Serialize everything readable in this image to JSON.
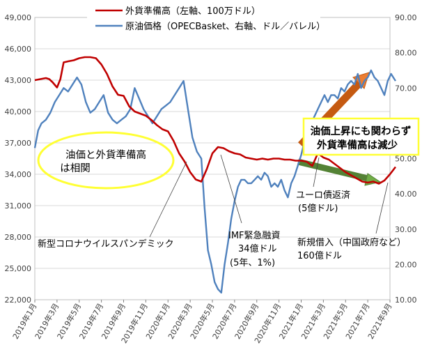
{
  "chart_data": {
    "type": "line",
    "legend_placement": "top-center",
    "grid": true,
    "x_ticks": [
      "2019年1月",
      "2019年3月",
      "2019年5月",
      "2019年7月",
      "2019年9月",
      "2019年11月",
      "2020年1月",
      "2020年3月",
      "2020年5月",
      "2020年7月",
      "2020年9月",
      "2020年11月",
      "2021年1月",
      "2021年3月",
      "2021年5月",
      "2021年7月",
      "2021年9月"
    ],
    "y_left": {
      "min": 22000,
      "max": 49000,
      "ticks": [
        "22,000",
        "25,000",
        "28,000",
        "31,000",
        "34,000",
        "37,000",
        "40,000",
        "43,000",
        "46,000",
        "49,000"
      ]
    },
    "y_right": {
      "min": 10,
      "max": 90,
      "ticks": [
        "10.00",
        "20.00",
        "30.00",
        "40.00",
        "50.00",
        "60.00",
        "70.00",
        "80.00",
        "90.00"
      ]
    },
    "series": [
      {
        "name": "外貨準備高（左軸、100万ドル）",
        "axis": "left",
        "color": "#c00000",
        "x": [
          0,
          1,
          1.3,
          1.6,
          2,
          2.3,
          2.6,
          3,
          3.5,
          4,
          4.5,
          5,
          5.5,
          6,
          6.5,
          7,
          7.5,
          8,
          8.5,
          9,
          9.5,
          10,
          10.5,
          11,
          11.5,
          12,
          12.5,
          13,
          13.5,
          14,
          14.5,
          15,
          15.5,
          16,
          16.5,
          17,
          17.5,
          18,
          18.5,
          19,
          19.5,
          20,
          20.5,
          21,
          21.5,
          22,
          22.5,
          23,
          23.5,
          24,
          24.5,
          25,
          25.5,
          26,
          26.5,
          27,
          27.5,
          28,
          28.5,
          29,
          29.5,
          30,
          30.5,
          31,
          31.5,
          32,
          32.5
        ],
        "values": [
          43000,
          43200,
          43100,
          42800,
          42300,
          43100,
          44700,
          44800,
          44900,
          45100,
          45200,
          45200,
          45100,
          44500,
          43600,
          42400,
          41600,
          41500,
          40500,
          40000,
          39800,
          39600,
          39200,
          38700,
          38300,
          38100,
          37200,
          36000,
          35200,
          34200,
          33500,
          33300,
          34500,
          36000,
          36600,
          36500,
          36200,
          36000,
          35900,
          35600,
          35500,
          35400,
          35500,
          35400,
          35500,
          35500,
          35400,
          35400,
          35300,
          35300,
          35200,
          34800,
          36000,
          35600,
          35400,
          35000,
          34600,
          34200,
          33900,
          33600,
          33300,
          33200,
          33300,
          33100,
          33400,
          34000,
          34700
        ]
      },
      {
        "name": "原油価格（OPECBasket、右軸、ドル／バレル）",
        "axis": "right",
        "color": "#4f81bd",
        "x": [
          0,
          0.3,
          0.6,
          1,
          1.4,
          1.8,
          2.2,
          2.6,
          3,
          3.4,
          3.8,
          4.2,
          4.6,
          5,
          5.4,
          5.8,
          6.2,
          6.6,
          7,
          7.4,
          7.8,
          8.2,
          8.6,
          9,
          9.4,
          9.8,
          10.2,
          10.6,
          11,
          11.4,
          11.8,
          12.2,
          12.6,
          13,
          13.4,
          13.8,
          14.2,
          14.6,
          15,
          15.3,
          15.6,
          15.9,
          16.2,
          16.5,
          16.8,
          17.1,
          17.4,
          17.7,
          18,
          18.3,
          18.6,
          18.9,
          19.2,
          19.5,
          19.8,
          20.1,
          20.4,
          20.7,
          21,
          21.3,
          21.6,
          21.9,
          22.2,
          22.5,
          22.8,
          23.1,
          23.4,
          23.7,
          24,
          24.3,
          24.6,
          24.9,
          25.2,
          25.5,
          25.8,
          26.1,
          26.4,
          26.7,
          27,
          27.3,
          27.6,
          27.9,
          28.2,
          28.5,
          28.8,
          29.1,
          29.4,
          29.7,
          30,
          30.3,
          30.6,
          30.9,
          31.2,
          31.5,
          31.8,
          32.1,
          32.5
        ],
        "values": [
          53,
          58,
          60,
          61,
          63,
          66,
          68,
          70,
          69,
          71,
          73,
          71,
          66,
          63,
          64,
          66,
          68,
          63,
          61,
          60,
          61,
          62,
          64,
          70,
          67,
          64,
          62,
          60,
          62,
          64,
          65,
          66,
          68,
          70,
          72,
          64,
          56,
          52,
          50,
          36,
          24,
          20,
          15,
          13,
          12,
          20,
          26,
          33,
          38,
          42,
          44,
          44,
          43,
          43,
          44,
          45,
          44,
          46,
          45,
          42,
          43,
          42,
          44,
          41,
          39,
          43,
          45,
          48,
          51,
          55,
          58,
          60,
          62,
          64,
          66,
          68,
          66,
          68,
          68,
          67,
          70,
          69,
          71,
          72,
          71,
          74,
          70,
          72,
          73,
          75,
          73,
          72,
          70,
          68,
          72,
          74,
          72
        ]
      }
    ],
    "annotations": [
      "油価と外貨準備高は相関",
      "油価上昇にも関わらず外貨準備高は減少",
      "新型コロナウイルスパンデミック",
      "IMF緊急融資34億ドル(5年、1%)",
      "ユーロ債返済(5億ドル)",
      "新規借入（中国政府など）160億ドル"
    ]
  },
  "labels": {
    "legend_red": "外貨準備高（左軸、100万ドル）",
    "legend_blue": "原油価格（OPECBasket、右軸、ドル／バレル）",
    "ellipse_l1": "油価と外貨準備高",
    "ellipse_l2": "は相関",
    "box_l1": "油価上昇にも関わらず",
    "box_l2": "外貨準備高は減少",
    "covid": "新型コロナウイルスパンデミック",
    "imf_l1": "IMF緊急融資",
    "imf_l2": "34億ドル",
    "imf_l3": "(5年、1%)",
    "euro_l1": "ユーロ債返済",
    "euro_l2": "(5億ドル)",
    "loan_l1": "新規借入（中国政府など）",
    "loan_l2": "160億ドル"
  }
}
